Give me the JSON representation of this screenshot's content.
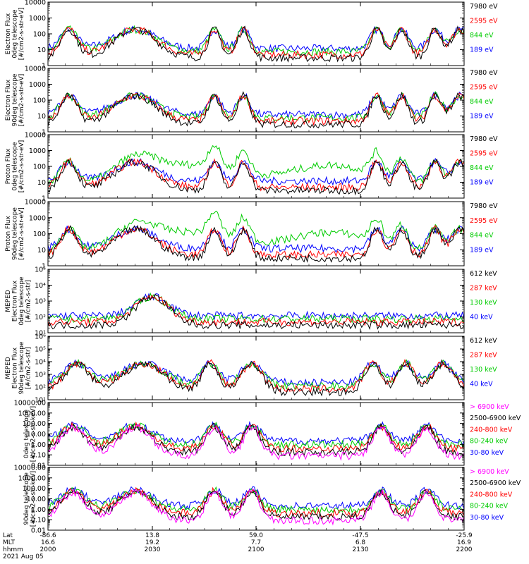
{
  "chart_data": [
    {
      "type": "line",
      "ylabel": [
        "Electron Flux",
        "0deg telescope",
        "[#/cm2-s-str-eV]"
      ],
      "yscale": "log",
      "ylim": [
        1,
        10000
      ],
      "ytick_labels": [
        "1",
        "10",
        "100",
        "1000",
        "10000"
      ],
      "legend": [
        {
          "name": "7980 eV",
          "color": "#000000"
        },
        {
          "name": "2595 eV",
          "color": "#ff0000"
        },
        {
          "name": "844 eV",
          "color": "#00cc00"
        },
        {
          "name": "189 eV",
          "color": "#0000ff"
        }
      ]
    },
    {
      "type": "line",
      "ylabel": [
        "Electron Flux",
        "90deg telescope",
        "[#/cm2-s-str-eV]"
      ],
      "yscale": "log",
      "ylim": [
        1,
        10000
      ],
      "ytick_labels": [
        "1",
        "10",
        "100",
        "1000",
        "10000"
      ],
      "legend": [
        {
          "name": "7980 eV",
          "color": "#000000"
        },
        {
          "name": "2595 eV",
          "color": "#ff0000"
        },
        {
          "name": "844 eV",
          "color": "#00cc00"
        },
        {
          "name": "189 eV",
          "color": "#0000ff"
        }
      ]
    },
    {
      "type": "line",
      "ylabel": [
        "Proton Flux",
        "0deg telescope",
        "[#/cm2-s-str-eV]"
      ],
      "yscale": "log",
      "ylim": [
        1,
        10000
      ],
      "ytick_labels": [
        "1",
        "10",
        "100",
        "1000",
        "10000"
      ],
      "legend": [
        {
          "name": "7980 eV",
          "color": "#000000"
        },
        {
          "name": "2595 eV",
          "color": "#ff0000"
        },
        {
          "name": "844 eV",
          "color": "#00cc00"
        },
        {
          "name": "189 eV",
          "color": "#0000ff"
        }
      ]
    },
    {
      "type": "line",
      "ylabel": [
        "Proton Flux",
        "90deg telescope",
        "[#/cm2-s-str-eV]"
      ],
      "yscale": "log",
      "ylim": [
        1,
        10000
      ],
      "ytick_labels": [
        "1",
        "10",
        "100",
        "1000",
        "10000"
      ],
      "legend": [
        {
          "name": "7980 eV",
          "color": "#000000"
        },
        {
          "name": "2595 eV",
          "color": "#ff0000"
        },
        {
          "name": "844 eV",
          "color": "#00cc00"
        },
        {
          "name": "189 eV",
          "color": "#0000ff"
        }
      ]
    },
    {
      "type": "line",
      "ylabel": [
        "MEPED",
        "Electron Flux",
        "0deg telescope",
        "[#/cm2-s-str]"
      ],
      "yscale": "log",
      "ylim": [
        10,
        100000
      ],
      "ytick_labels": [
        "10¹",
        "10²",
        "10³",
        "10⁴",
        "10⁵"
      ],
      "legend": [
        {
          "name": "612 keV",
          "color": "#000000"
        },
        {
          "name": "287 keV",
          "color": "#ff0000"
        },
        {
          "name": "130 keV",
          "color": "#00cc00"
        },
        {
          "name": "40 keV",
          "color": "#0000ff"
        }
      ]
    },
    {
      "type": "line",
      "ylabel": [
        "MEPED",
        "Electron Flux",
        "90deg telescope",
        "[#/cm2-s-str]"
      ],
      "yscale": "log",
      "ylim": [
        10,
        1000000
      ],
      "ytick_labels": [
        "10¹",
        "10²",
        "10³",
        "10⁴",
        "10⁵",
        "10⁶"
      ],
      "legend": [
        {
          "name": "612 keV",
          "color": "#000000"
        },
        {
          "name": "287 keV",
          "color": "#ff0000"
        },
        {
          "name": "130 keV",
          "color": "#00cc00"
        },
        {
          "name": "40 keV",
          "color": "#0000ff"
        }
      ]
    },
    {
      "type": "line",
      "ylabel": [
        "0deg telescope",
        "[#/cm2-s-str-keV]"
      ],
      "yscale": "log",
      "ylim": [
        0.01,
        10000
      ],
      "ytick_labels": [
        "0.01",
        "0.10",
        "1.00",
        "10.00",
        "100.00",
        "1000.00",
        "10000.00"
      ],
      "legend": [
        {
          "name": "> 6900 keV",
          "color": "#ff00ff"
        },
        {
          "name": "2500-6900 keV",
          "color": "#000000"
        },
        {
          "name": "240-800 keV",
          "color": "#ff0000"
        },
        {
          "name": "80-240 keV",
          "color": "#00cc00"
        },
        {
          "name": "30-80 keV",
          "color": "#0000ff"
        }
      ]
    },
    {
      "type": "line",
      "ylabel": [
        "90deg telescope",
        "[#/cm2-s-str-keV]"
      ],
      "yscale": "log",
      "ylim": [
        0.01,
        10000
      ],
      "ytick_labels": [
        "0.01",
        "0.10",
        "1.00",
        "10.00",
        "100.00",
        "1000.00",
        "10000.00"
      ],
      "legend": [
        {
          "name": "> 6900 keV",
          "color": "#ff00ff"
        },
        {
          "name": "2500-6900 keV",
          "color": "#000000"
        },
        {
          "name": "240-800 keV",
          "color": "#ff0000"
        },
        {
          "name": "80-240 keV",
          "color": "#00cc00"
        },
        {
          "name": "30-80 keV",
          "color": "#0000ff"
        }
      ]
    }
  ],
  "x_axis": {
    "row_labels": [
      "Lat",
      "MLT",
      "hhmm"
    ],
    "date": "2021 Aug 05",
    "ticks": [
      {
        "lat": "-86.6",
        "mlt": "16.6",
        "hhmm": "2000"
      },
      {
        "lat": "13.8",
        "mlt": "19.2",
        "hhmm": "2030"
      },
      {
        "lat": "59.0",
        "mlt": "7.7",
        "hhmm": "2100"
      },
      {
        "lat": "-47.5",
        "mlt": "6.8",
        "hhmm": "2130"
      },
      {
        "lat": "-25.9",
        "mlt": "16.9",
        "hhmm": "2200"
      }
    ]
  }
}
